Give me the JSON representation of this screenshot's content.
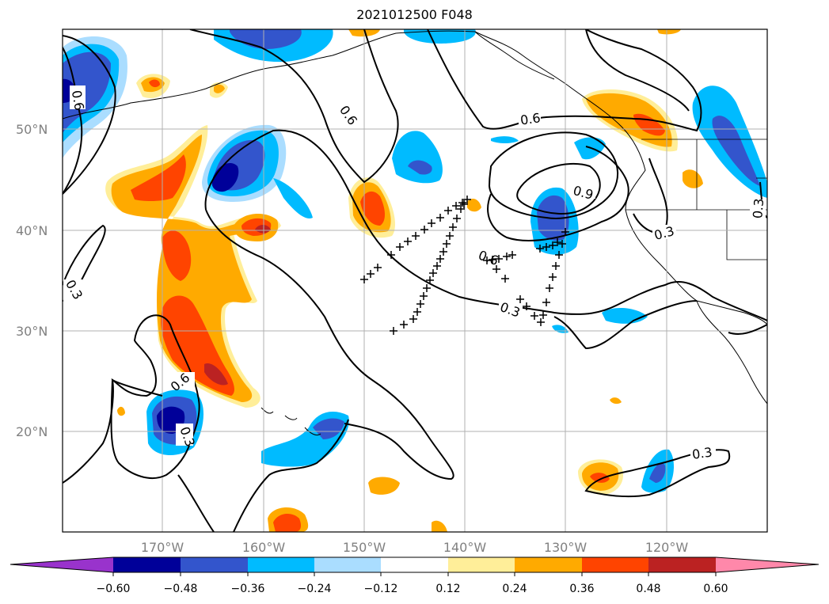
{
  "title": "2021012500 F048",
  "map": {
    "lat_labels": [
      "50°N",
      "40°N",
      "30°N",
      "20°N"
    ],
    "lon_labels": [
      "170°W",
      "160°W",
      "150°W",
      "140°W",
      "130°W",
      "120°W"
    ],
    "contour_labels": [
      "0.6",
      "0.6",
      "0.6",
      "0.9",
      "0.6",
      "0.3",
      "0.3",
      "0.3",
      "0.3",
      "0.6",
      "0.3",
      "0.3"
    ]
  },
  "colorbar": {
    "ticks": [
      "−0.60",
      "−0.48",
      "−0.36",
      "−0.24",
      "−0.12",
      "0.12",
      "0.24",
      "0.36",
      "0.48",
      "0.60"
    ],
    "colors": [
      "#9933cc",
      "#000099",
      "#3355cc",
      "#00bbff",
      "#aaddff",
      "#ffffff",
      "#ffee99",
      "#ffaa00",
      "#ff4400",
      "#bb2222",
      "#ff88aa"
    ]
  },
  "colors": {
    "neg_dark": "#000099",
    "neg_mid": "#3355cc",
    "neg_light": "#00bbff",
    "neg_pale": "#aaddff",
    "pos_pale": "#ffee99",
    "pos_light": "#ffaa00",
    "pos_mid": "#ff4400",
    "pos_dark": "#bb2222"
  }
}
